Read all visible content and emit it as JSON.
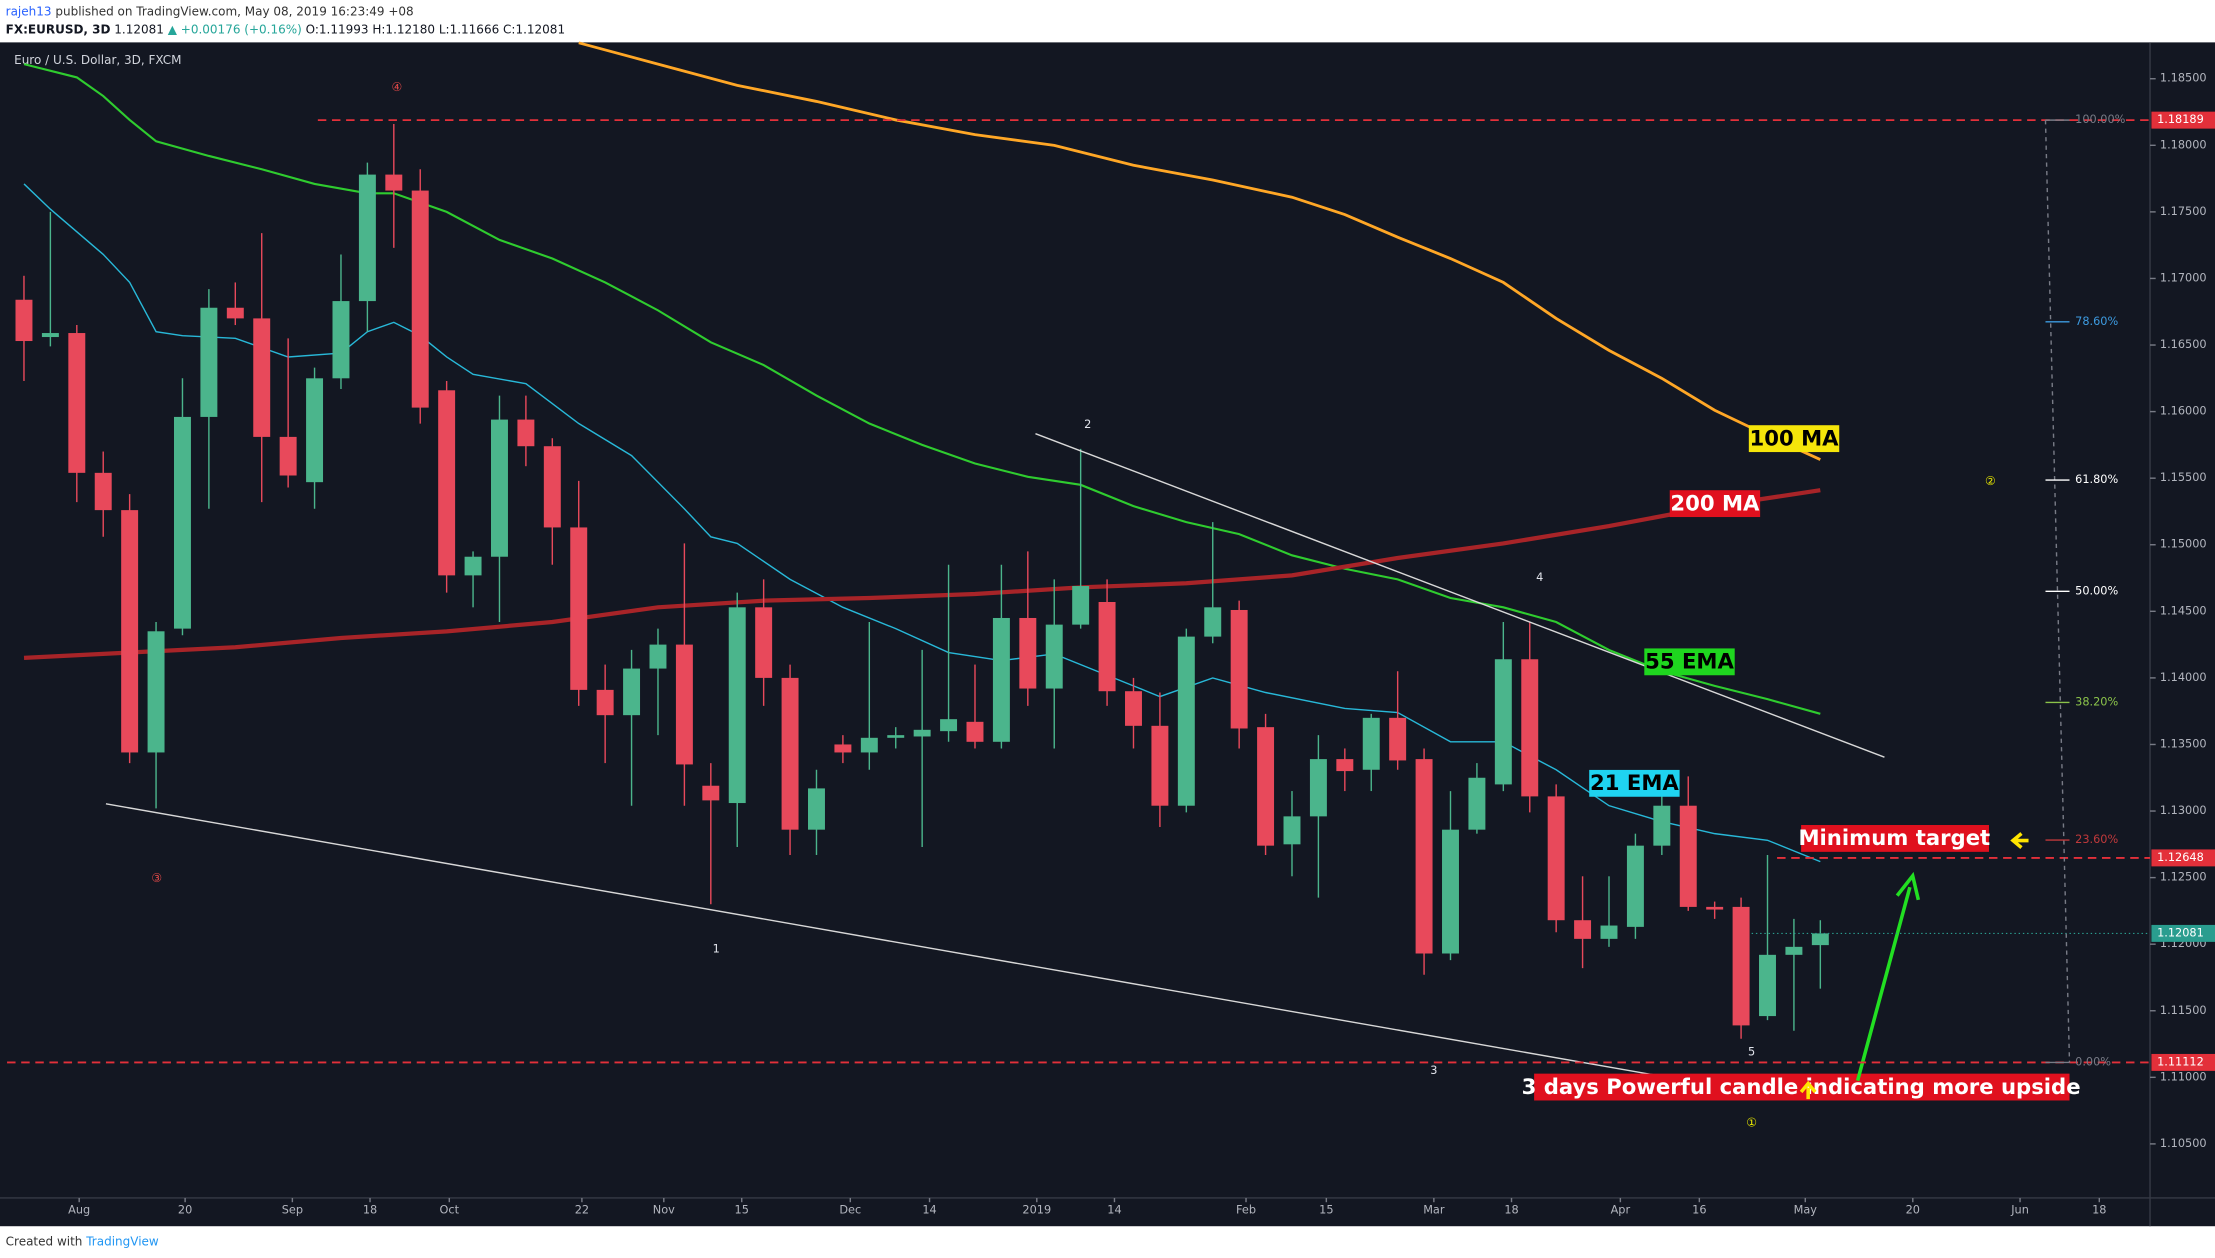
{
  "chart_data": {
    "type": "candlestick",
    "header": {
      "user": "rajeh13",
      "published": "published on TradingView.com, May 08, 2019 16:23:49 +08",
      "symbol": "FX:EURUSD, 3D",
      "last": "1.12081",
      "change": "▲ +0.00176 (+0.16%)",
      "ohlc": "O:1.11993 H:1.12180 L:1.11666 C:1.12081"
    },
    "title": "Euro / U.S. Dollar, 3D, FXCM",
    "footer": {
      "created": "Created with",
      "brand": "TradingView"
    },
    "x": [
      0,
      1,
      2,
      3,
      4,
      5,
      6,
      7,
      8,
      9,
      10,
      11,
      12,
      13,
      14,
      15,
      16,
      17,
      18,
      19,
      20,
      21,
      22,
      23,
      24,
      25,
      26,
      27,
      28,
      29,
      30,
      31,
      32,
      33,
      34,
      35,
      36,
      37,
      38,
      39,
      40,
      41,
      42,
      43,
      44,
      45,
      46,
      47,
      48,
      49,
      50,
      51,
      52,
      53,
      54,
      55,
      56,
      57,
      58,
      59,
      60,
      61,
      62,
      63,
      64,
      65,
      66,
      67,
      68
    ],
    "open": [
      1.1684,
      1.1656,
      1.1659,
      1.1554,
      1.1526,
      1.1344,
      1.1437,
      1.1596,
      1.1678,
      1.167,
      1.1581,
      1.1547,
      1.1625,
      1.1683,
      1.1778,
      1.1766,
      1.1616,
      1.1477,
      1.1491,
      1.1594,
      1.1574,
      1.1513,
      1.1391,
      1.1372,
      1.1407,
      1.1425,
      1.1319,
      1.1306,
      1.1453,
      1.14,
      1.1286,
      1.135,
      1.1344,
      1.1355,
      1.1356,
      1.136,
      1.1367,
      1.1352,
      1.1445,
      1.1392,
      1.144,
      1.1457,
      1.139,
      1.1364,
      1.1304,
      1.1431,
      1.1451,
      1.1363,
      1.1275,
      1.1296,
      1.1339,
      1.1331,
      1.137,
      1.1339,
      1.1193,
      1.1286,
      1.132,
      1.1414,
      1.1311,
      1.1218,
      1.1204,
      1.1213,
      1.1274,
      1.1304,
      1.1228,
      1.1228,
      1.1146,
      1.1192,
      1.11993
    ],
    "high": [
      1.1702,
      1.175,
      1.1665,
      1.157,
      1.1538,
      1.1442,
      1.1625,
      1.1692,
      1.1697,
      1.1734,
      1.1655,
      1.1633,
      1.1718,
      1.1787,
      1.1816,
      1.1782,
      1.1623,
      1.1495,
      1.1612,
      1.1612,
      1.158,
      1.1548,
      1.141,
      1.1421,
      1.1437,
      1.1501,
      1.1336,
      1.1464,
      1.1474,
      1.141,
      1.1331,
      1.1357,
      1.1442,
      1.1363,
      1.1421,
      1.1485,
      1.141,
      1.1485,
      1.1495,
      1.1474,
      1.1572,
      1.1474,
      1.14,
      1.1389,
      1.1437,
      1.1517,
      1.1458,
      1.1373,
      1.1315,
      1.1357,
      1.1347,
      1.1373,
      1.1405,
      1.1347,
      1.1315,
      1.1336,
      1.1442,
      1.1442,
      1.132,
      1.1251,
      1.1251,
      1.1283,
      1.1315,
      1.1326,
      1.1232,
      1.1235,
      1.1267,
      1.1219,
      1.1218
    ],
    "low": [
      1.1623,
      1.1649,
      1.1532,
      1.1506,
      1.1336,
      1.1302,
      1.1432,
      1.1527,
      1.1665,
      1.1532,
      1.1543,
      1.1527,
      1.1617,
      1.166,
      1.1723,
      1.1591,
      1.1464,
      1.1453,
      1.1442,
      1.1559,
      1.1485,
      1.1379,
      1.1336,
      1.1304,
      1.1357,
      1.1304,
      1.123,
      1.1273,
      1.1379,
      1.1267,
      1.1267,
      1.1336,
      1.1331,
      1.1347,
      1.1273,
      1.1352,
      1.1347,
      1.1347,
      1.1379,
      1.1347,
      1.1437,
      1.1379,
      1.1347,
      1.1288,
      1.1299,
      1.1426,
      1.1347,
      1.1267,
      1.1251,
      1.1235,
      1.1315,
      1.1315,
      1.1331,
      1.1177,
      1.1188,
      1.1283,
      1.1315,
      1.1299,
      1.1209,
      1.1182,
      1.1198,
      1.1204,
      1.1267,
      1.1225,
      1.1219,
      1.1129,
      1.1143,
      1.1135,
      1.11666
    ],
    "close": [
      1.1653,
      1.1659,
      1.1554,
      1.1526,
      1.1344,
      1.1435,
      1.1596,
      1.1678,
      1.167,
      1.1581,
      1.1552,
      1.1625,
      1.1683,
      1.1778,
      1.1766,
      1.1603,
      1.1477,
      1.1491,
      1.1594,
      1.1574,
      1.1513,
      1.1391,
      1.1372,
      1.1407,
      1.1425,
      1.1335,
      1.1308,
      1.1453,
      1.14,
      1.1286,
      1.1317,
      1.1344,
      1.1355,
      1.1357,
      1.1361,
      1.1369,
      1.1352,
      1.1445,
      1.1392,
      1.144,
      1.1469,
      1.139,
      1.1364,
      1.1304,
      1.1431,
      1.1453,
      1.1362,
      1.1274,
      1.1296,
      1.1339,
      1.133,
      1.137,
      1.1338,
      1.1193,
      1.1286,
      1.1325,
      1.1414,
      1.1311,
      1.1218,
      1.1204,
      1.1214,
      1.1274,
      1.1304,
      1.1228,
      1.1226,
      1.1139,
      1.1192,
      1.1198,
      1.12081
    ],
    "up_color": "#4bb58c",
    "down_color": "#e8495b",
    "series": [
      {
        "name": "21 EMA",
        "color": "#28b8d8",
        "x": [
          0,
          1,
          3,
          4,
          5,
          6,
          8,
          10,
          12,
          13,
          14,
          15,
          16,
          17,
          19,
          21,
          23,
          25,
          26,
          27,
          29,
          31,
          33,
          35,
          37,
          39,
          41,
          43,
          45,
          47,
          50,
          52,
          54,
          56,
          58,
          60,
          62,
          64,
          66,
          68
        ],
        "values": [
          1.1771,
          1.1752,
          1.1718,
          1.1697,
          1.166,
          1.1657,
          1.1655,
          1.1641,
          1.1644,
          1.166,
          1.1667,
          1.1657,
          1.1641,
          1.1628,
          1.1621,
          1.1591,
          1.1567,
          1.1527,
          1.1506,
          1.1501,
          1.1474,
          1.1453,
          1.1437,
          1.1419,
          1.1413,
          1.1418,
          1.1402,
          1.1386,
          1.14,
          1.1389,
          1.1377,
          1.1374,
          1.1352,
          1.1352,
          1.1331,
          1.1304,
          1.1292,
          1.1283,
          1.1278,
          1.1262
        ]
      },
      {
        "name": "55 EMA",
        "color": "#2fcc2f",
        "x": [
          0,
          2,
          3,
          4,
          5,
          7,
          9,
          11,
          13,
          14,
          16,
          18,
          20,
          22,
          24,
          26,
          28,
          30,
          32,
          34,
          36,
          38,
          40,
          42,
          44,
          46,
          48,
          50,
          52,
          54,
          56,
          58,
          60,
          62,
          64,
          66,
          68
        ],
        "values": [
          1.1861,
          1.1851,
          1.1837,
          1.1819,
          1.1803,
          1.1792,
          1.1782,
          1.1771,
          1.1764,
          1.1764,
          1.175,
          1.1729,
          1.1715,
          1.1697,
          1.1676,
          1.1652,
          1.1635,
          1.1612,
          1.1591,
          1.1575,
          1.1561,
          1.1551,
          1.1545,
          1.1529,
          1.1517,
          1.1508,
          1.1492,
          1.1482,
          1.1474,
          1.146,
          1.1453,
          1.1442,
          1.1421,
          1.1405,
          1.1394,
          1.1384,
          1.1373
        ]
      },
      {
        "name": "100 MA",
        "color": "#ffa726",
        "x": [
          21,
          24,
          27,
          30,
          33,
          36,
          39,
          42,
          45,
          48,
          50,
          52,
          54,
          56,
          58,
          60,
          62,
          64,
          66,
          68
        ],
        "values": [
          1.1877,
          1.1861,
          1.1845,
          1.1833,
          1.1819,
          1.1808,
          1.18,
          1.1785,
          1.1774,
          1.1761,
          1.1748,
          1.1731,
          1.1715,
          1.1697,
          1.167,
          1.1646,
          1.1625,
          1.1601,
          1.1582,
          1.1564
        ]
      },
      {
        "name": "200 MA",
        "color": "#a82428",
        "x": [
          0,
          4,
          8,
          12,
          16,
          20,
          24,
          28,
          32,
          36,
          40,
          44,
          48,
          52,
          56,
          60,
          64,
          68
        ],
        "values": [
          1.1415,
          1.1419,
          1.1423,
          1.143,
          1.1435,
          1.1442,
          1.1453,
          1.1458,
          1.146,
          1.1463,
          1.1468,
          1.1471,
          1.1477,
          1.149,
          1.1501,
          1.1514,
          1.1529,
          1.1541
        ]
      }
    ],
    "price_lines": [
      {
        "value": 1.18189,
        "color": "#e3303a"
      },
      {
        "value": 1.12648,
        "color": "#e3303a"
      },
      {
        "value": 1.12081,
        "color": "#2a9d8f"
      },
      {
        "value": 1.11112,
        "color": "#e3303a"
      }
    ],
    "fib": {
      "low": 1.11112,
      "high": 1.18189,
      "levels": [
        {
          "value": 100,
          "label": "100.00%",
          "color": "#787b86"
        },
        {
          "value": 78.6,
          "label": "78.60%",
          "color": "#3d9be0"
        },
        {
          "value": 61.8,
          "label": "61.80%",
          "color": "#ffffff"
        },
        {
          "value": 50,
          "label": "50.00%",
          "color": "#ffffff"
        },
        {
          "value": 38.2,
          "label": "38.20%",
          "color": "#8bc34a"
        },
        {
          "value": 23.6,
          "label": "23.60%",
          "color": "#c0393b"
        },
        {
          "value": 0,
          "label": "0.00%",
          "color": "#787b86"
        }
      ]
    },
    "annotations": {
      "waves": [
        "1",
        "2",
        "3",
        "4",
        "5"
      ],
      "circles": [
        "④",
        "③",
        "②",
        "①"
      ],
      "target": "Minimum target",
      "note": "3 days Powerful candle indicating more upside"
    },
    "xlim": [
      -0.64,
      80.48
    ],
    "xticks": [
      {
        "value": 2.09,
        "label": "Aug"
      },
      {
        "value": 6.1,
        "label": "20"
      },
      {
        "value": 10.16,
        "label": "Sep"
      },
      {
        "value": 13.1,
        "label": "18"
      },
      {
        "value": 16.1,
        "label": "Oct"
      },
      {
        "value": 21.12,
        "label": "22"
      },
      {
        "value": 24.22,
        "label": "Nov"
      },
      {
        "value": 27.17,
        "label": "15"
      },
      {
        "value": 31.28,
        "label": "Dec"
      },
      {
        "value": 34.28,
        "label": "14"
      },
      {
        "value": 38.34,
        "label": "2019"
      },
      {
        "value": 41.28,
        "label": "14"
      },
      {
        "value": 46.26,
        "label": "Feb"
      },
      {
        "value": 49.3,
        "label": "15"
      },
      {
        "value": 53.37,
        "label": "Mar"
      },
      {
        "value": 56.31,
        "label": "18"
      },
      {
        "value": 60.43,
        "label": "Apr"
      },
      {
        "value": 63.42,
        "label": "16"
      },
      {
        "value": 67.43,
        "label": "May"
      },
      {
        "value": 71.5,
        "label": "20"
      },
      {
        "value": 75.56,
        "label": "Jun"
      },
      {
        "value": 78.56,
        "label": "18"
      }
    ],
    "ylim": [
      1.10094,
      1.18773
    ],
    "yticks": [
      {
        "value": 1.185,
        "label": "1.18500"
      },
      {
        "value": 1.18,
        "label": "1.18000"
      },
      {
        "value": 1.175,
        "label": "1.17500"
      },
      {
        "value": 1.17,
        "label": "1.17000"
      },
      {
        "value": 1.165,
        "label": "1.16500"
      },
      {
        "value": 1.16,
        "label": "1.16000"
      },
      {
        "value": 1.155,
        "label": "1.15500"
      },
      {
        "value": 1.15,
        "label": "1.15000"
      },
      {
        "value": 1.145,
        "label": "1.14500"
      },
      {
        "value": 1.14,
        "label": "1.14000"
      },
      {
        "value": 1.135,
        "label": "1.13500"
      },
      {
        "value": 1.13,
        "label": "1.13000"
      },
      {
        "value": 1.125,
        "label": "1.12500"
      },
      {
        "value": 1.12,
        "label": "1.12000"
      },
      {
        "value": 1.115,
        "label": "1.11500"
      },
      {
        "value": 1.11,
        "label": "1.11000"
      },
      {
        "value": 1.105,
        "label": "1.10500"
      }
    ],
    "grid": false
  }
}
